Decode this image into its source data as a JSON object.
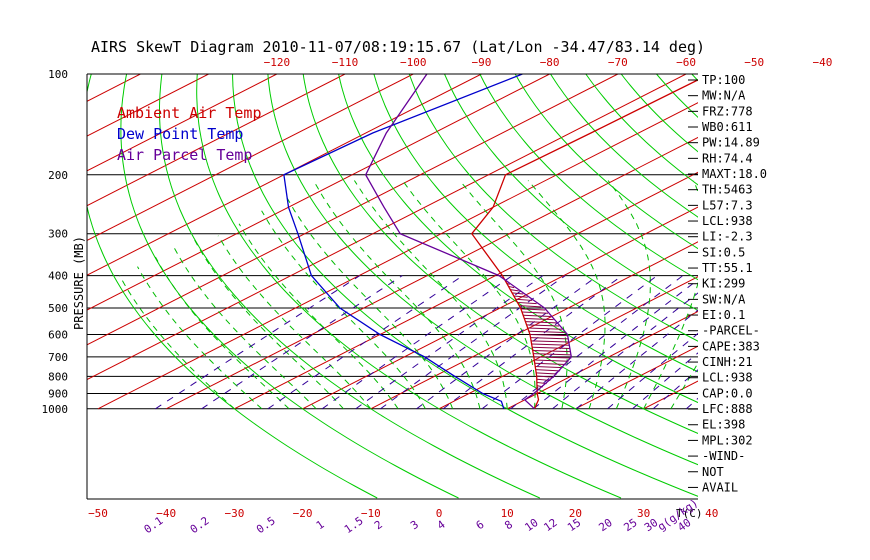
{
  "chart_data": {
    "type": "line",
    "title": "AIRS SkewT Diagram 2010-11-07/08:19:15.67 (Lat/Lon -34.47/83.14 deg)",
    "ylabel": "PRESSURE (MB)",
    "xlabel": "T(C)",
    "mixing_ratio_label": "g(g/kg)",
    "ylim": [
      1000,
      100
    ],
    "xlim": [
      -50,
      40
    ],
    "y_scale": "log-pressure",
    "top_ticks": [
      -120,
      -110,
      -100,
      -90,
      -80,
      -70,
      -60,
      -50,
      -40
    ],
    "bottom_ticks": [
      -50,
      -40,
      -30,
      -20,
      -10,
      0,
      10,
      20,
      30,
      40
    ],
    "pressure_ticks": [
      100,
      200,
      300,
      400,
      500,
      600,
      700,
      800,
      900,
      1000
    ],
    "mixing_ratio_ticks": [
      "0.1",
      "0.2",
      "0.5",
      "1",
      "1.5",
      "2",
      "3",
      "4",
      "6",
      "8",
      "10",
      "12",
      "15",
      "20",
      "25",
      "30",
      "40"
    ],
    "legend": {
      "placement": "top-left",
      "items": [
        {
          "label": "Ambient Air Temp",
          "color": "#cc0000"
        },
        {
          "label": "Dew Point Temp",
          "color": "#0000cc"
        },
        {
          "label": "Air Parcel Temp",
          "color": "#660099"
        }
      ]
    },
    "series": [
      {
        "name": "Ambient Air Temp",
        "color": "#cc0000",
        "points": [
          [
            100,
            -56.5
          ],
          [
            150,
            -57
          ],
          [
            200,
            -57.5
          ],
          [
            250,
            -50
          ],
          [
            300,
            -45.5
          ],
          [
            400,
            -29
          ],
          [
            500,
            -17
          ],
          [
            600,
            -8
          ],
          [
            700,
            -1
          ],
          [
            800,
            5
          ],
          [
            900,
            10
          ],
          [
            940,
            12
          ],
          [
            1000,
            14
          ]
        ]
      },
      {
        "name": "Dew Point Temp",
        "color": "#0000cc",
        "points": [
          [
            100,
            -84
          ],
          [
            150,
            -89
          ],
          [
            200,
            -90
          ],
          [
            250,
            -80
          ],
          [
            300,
            -71
          ],
          [
            400,
            -57
          ],
          [
            500,
            -43.5
          ],
          [
            600,
            -30
          ],
          [
            700,
            -17
          ],
          [
            800,
            -7
          ],
          [
            900,
            2
          ],
          [
            950,
            7
          ],
          [
            1000,
            9.5
          ]
        ]
      },
      {
        "name": "Air Parcel Temp",
        "color": "#660099",
        "points": [
          [
            100,
            -98
          ],
          [
            150,
            -87
          ],
          [
            200,
            -78
          ],
          [
            250,
            -66
          ],
          [
            300,
            -56
          ],
          [
            400,
            -29.5
          ],
          [
            500,
            -13.5
          ],
          [
            600,
            -2.5
          ],
          [
            700,
            4.5
          ],
          [
            800,
            7.5
          ],
          [
            900,
            9.5
          ],
          [
            940,
            10
          ],
          [
            1000,
            14
          ]
        ]
      }
    ],
    "cape_shading": {
      "color": "#880044",
      "from_hpa": 398,
      "to_hpa": 890
    }
  },
  "indices": [
    "TP:100",
    "MW:N/A",
    "FRZ:778",
    "WB0:611",
    "PW:14.89",
    "RH:74.4",
    "MAXT:18.0",
    "TH:5463",
    "L57:7.3",
    "LCL:938",
    "LI:-2.3",
    "SI:0.5",
    "TT:55.1",
    "KI:299",
    "SW:N/A",
    "EI:0.1",
    "-PARCEL-",
    "CAPE:383",
    "CINH:21",
    "LCL:938",
    "CAP:0.0",
    "LFC:888",
    "EL:398",
    "MPL:302",
    "-WIND-",
    "NOT",
    "AVAIL"
  ],
  "colors": {
    "isotherm": "#cc0000",
    "dry_adiabat": "#00cc00",
    "moist_adiabat": "#00bb00",
    "mixing_ratio": "#330099",
    "isobar": "#000000"
  }
}
